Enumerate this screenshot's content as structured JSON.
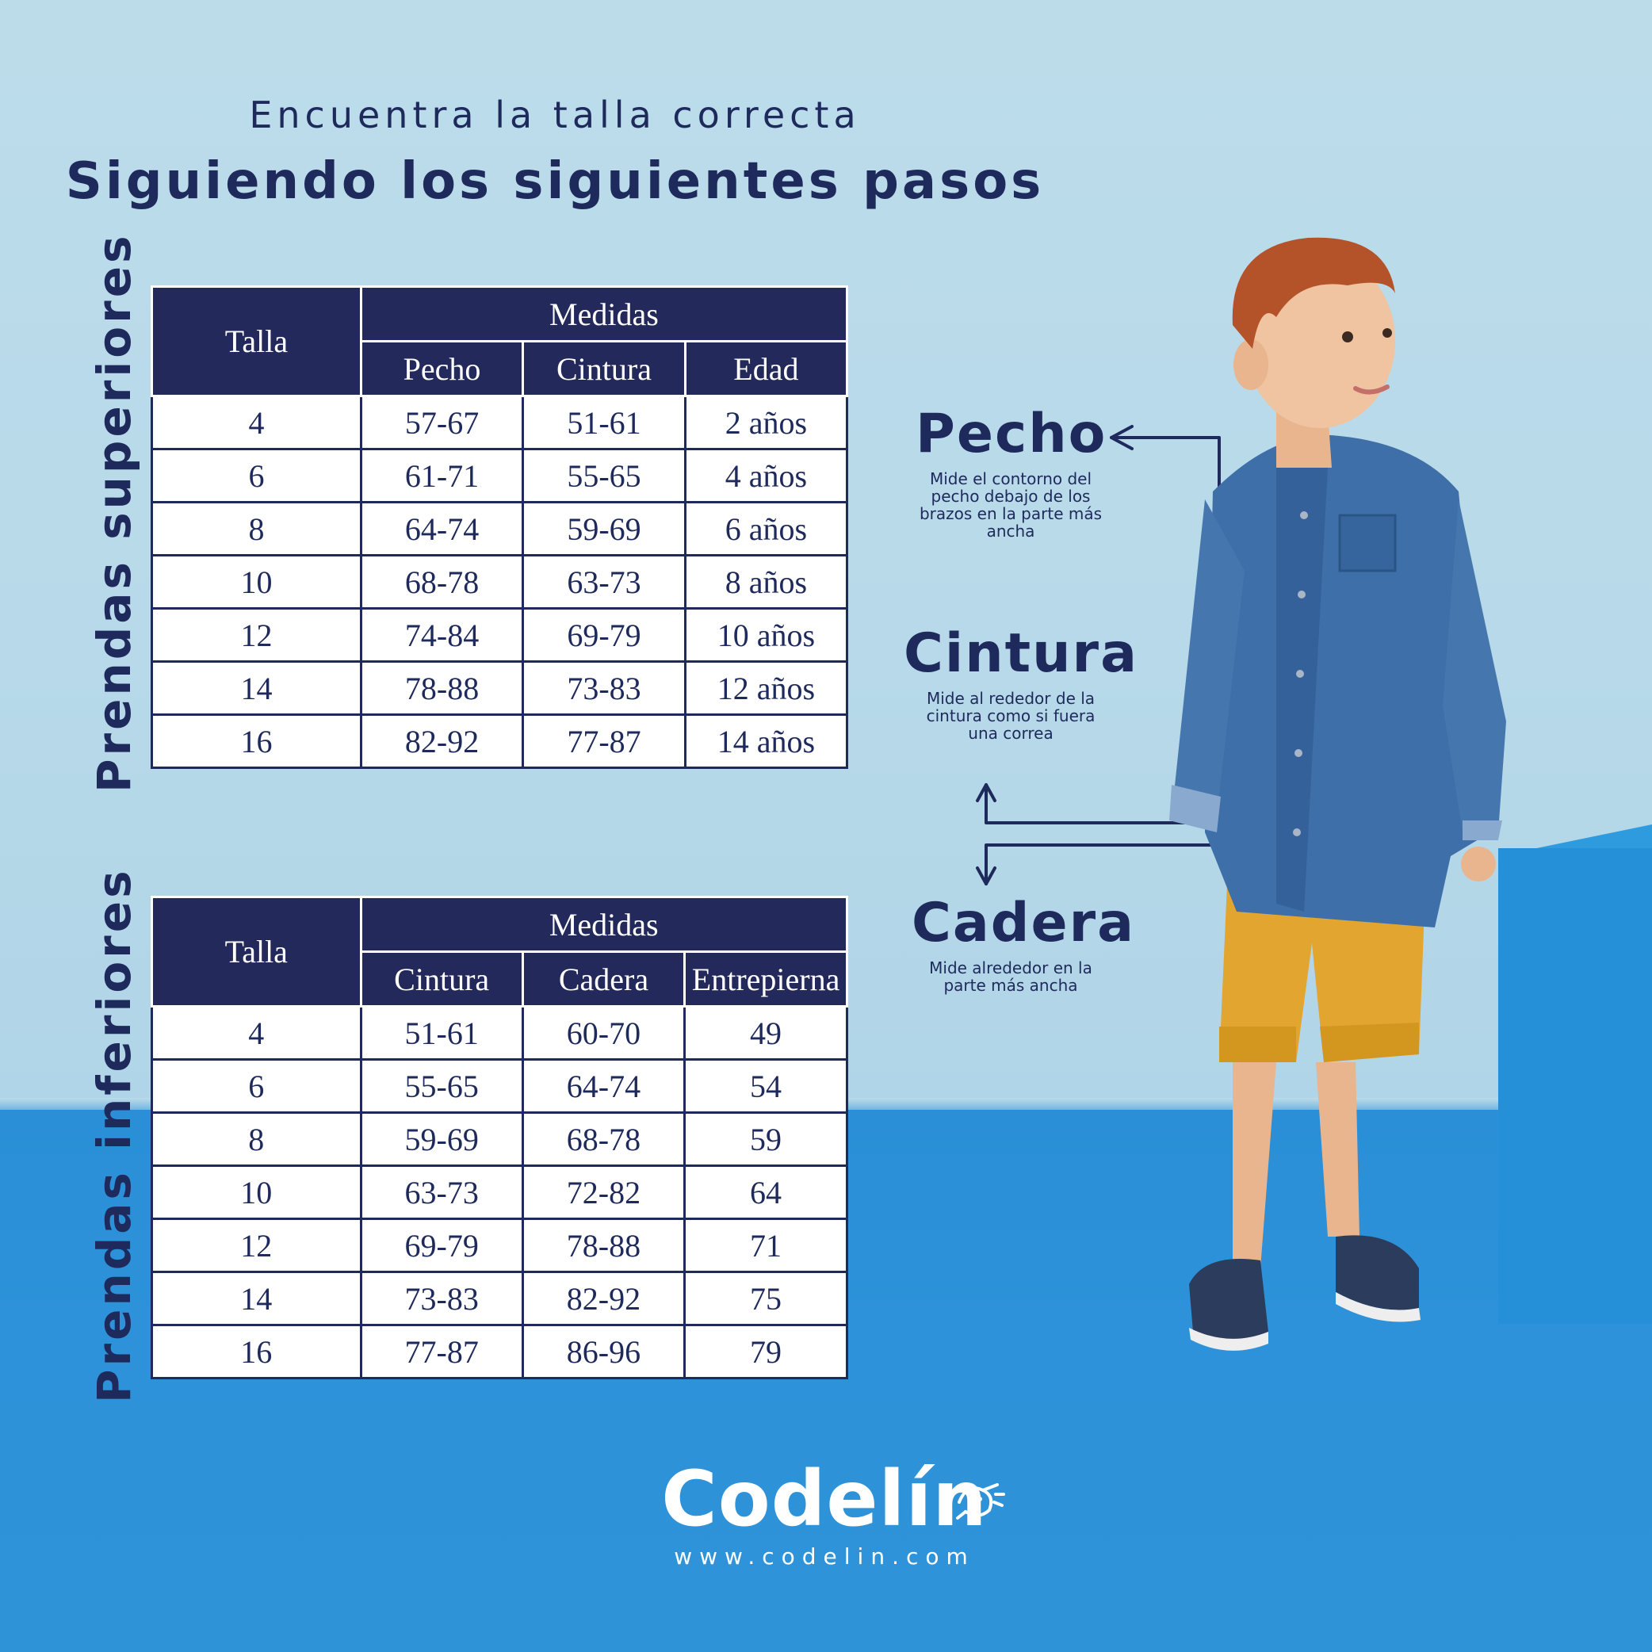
{
  "heading": {
    "line1": "Encuentra la talla correcta",
    "line2": "Siguiendo los siguientes pasos"
  },
  "tops": {
    "side_label": "Prendas superiores",
    "group_header": "Medidas",
    "headers": [
      "Talla",
      "Pecho",
      "Cintura",
      "Edad"
    ],
    "rows": [
      [
        "4",
        "57-67",
        "51-61",
        "2 años"
      ],
      [
        "6",
        "61-71",
        "55-65",
        "4 años"
      ],
      [
        "8",
        "64-74",
        "59-69",
        "6 años"
      ],
      [
        "10",
        "68-78",
        "63-73",
        "8 años"
      ],
      [
        "12",
        "74-84",
        "69-79",
        "10 años"
      ],
      [
        "14",
        "78-88",
        "73-83",
        "12 años"
      ],
      [
        "16",
        "82-92",
        "77-87",
        "14 años"
      ]
    ]
  },
  "bottoms": {
    "side_label": "Prendas inferiores",
    "group_header": "Medidas",
    "headers": [
      "Talla",
      "Cintura",
      "Cadera",
      "Entrepierna"
    ],
    "rows": [
      [
        "4",
        "51-61",
        "60-70",
        "49"
      ],
      [
        "6",
        "55-65",
        "64-74",
        "54"
      ],
      [
        "8",
        "59-69",
        "68-78",
        "59"
      ],
      [
        "10",
        "63-73",
        "72-82",
        "64"
      ],
      [
        "12",
        "69-79",
        "78-88",
        "71"
      ],
      [
        "14",
        "73-83",
        "82-92",
        "75"
      ],
      [
        "16",
        "77-87",
        "86-96",
        "79"
      ]
    ]
  },
  "measures": {
    "pecho": {
      "title": "Pecho",
      "desc": "Mide el contorno del pecho debajo de los brazos en la parte más ancha"
    },
    "cintura": {
      "title": "Cintura",
      "desc": "Mide al rededor de la cintura como si fuera una correa"
    },
    "cadera": {
      "title": "Cadera",
      "desc": "Mide alrededor en la parte más ancha"
    }
  },
  "brand": {
    "name": "Codelín",
    "url": "www.codelin.com"
  },
  "colors": {
    "navy": "#1f2a5c",
    "header_bg": "#23295a",
    "wall": "#bcdcea",
    "floor": "#2d92d9"
  }
}
